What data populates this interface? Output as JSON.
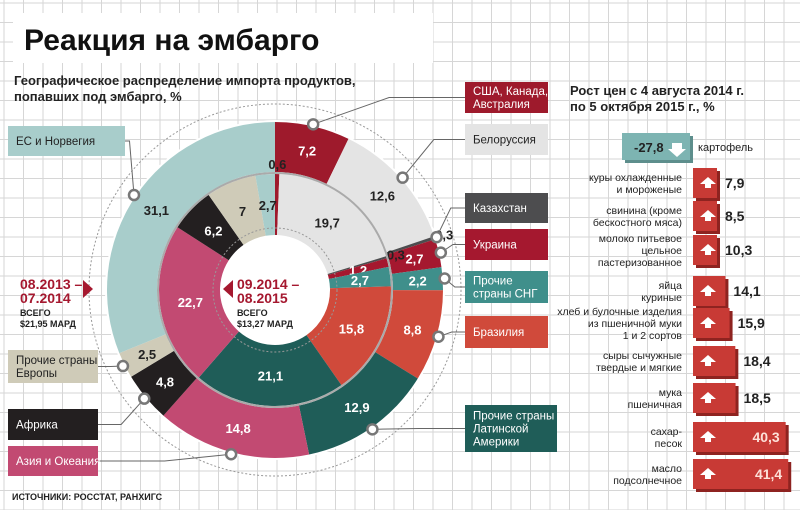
{
  "title": "Реакция на эмбарго",
  "source": "ИСТОЧНИКИ: РОССТАТ, РАНХИГС",
  "chart_data": [
    {
      "type": "pie",
      "subtype": "nested-donut",
      "title": "Географическое распределение импорта продуктов, попавших под эмбарго, %",
      "title_lines": [
        "Географическое распределение импорта продуктов,",
        "попавших под эмбарго, %"
      ],
      "categories": [
        "США, Канада, Австралия",
        "Белоруссия",
        "Казахстан",
        "Украина",
        "Прочие страны СНГ",
        "Бразилия",
        "Прочие страны Латинской Америки",
        "Азия и Океания",
        "Африка",
        "Прочие страны Европы",
        "ЕС и Норвегия"
      ],
      "colors": [
        "#9e1a2c",
        "#e4e4e4",
        "#4d4d4f",
        "#a5182f",
        "#3f8f8b",
        "#d04a3b",
        "#1f5d58",
        "#c24a72",
        "#231f20",
        "#cfcbb8",
        "#a8cdcb"
      ],
      "series": [
        {
          "name": "08.2013 – 07.2014",
          "ring": "outer",
          "total": "ВСЕГО $21,95 МАРД",
          "values": [
            7.2,
            12.6,
            0.3,
            2.7,
            2.2,
            8.8,
            12.9,
            14.8,
            4.8,
            2.5,
            31.1
          ]
        },
        {
          "name": "09.2014 – 08.2015",
          "ring": "inner",
          "total": "ВСЕГО $13,27 МАРД",
          "values": [
            0.6,
            19.7,
            0.3,
            1.2,
            2.7,
            15.8,
            21.1,
            22.7,
            6.2,
            7,
            2.7
          ]
        }
      ],
      "legend_placement": "around"
    },
    {
      "type": "bar",
      "orientation": "horizontal",
      "title_lines": [
        "Рост цен с 4 августа 2014 г.",
        "по 5 октября 2015 г., %"
      ],
      "negative": {
        "category": "картофель",
        "value": -27.8,
        "label": "-27,8",
        "color": "#7db4b2"
      },
      "categories": [
        [
          "куры охлажденные",
          "и мороженые"
        ],
        [
          "свинина (кроме",
          "бескостного мяса)"
        ],
        [
          "молоко питьевое",
          "цельное",
          "пастеризованное"
        ],
        [
          "яйца",
          "куриные"
        ],
        [
          "хлеб и булочные изделия",
          "из пшеничной муки",
          "1 и 2 сортов"
        ],
        [
          "сыры сычужные",
          "твердые и мягкие"
        ],
        [
          "мука",
          "пшеничная"
        ],
        [
          "сахар-",
          "песок"
        ],
        [
          "масло",
          "подсолнечное"
        ]
      ],
      "values": [
        7.9,
        8.5,
        10.3,
        14.1,
        15.9,
        18.4,
        18.5,
        40.3,
        41.4
      ],
      "labels": [
        "7,9",
        "8,5",
        "10,3",
        "14,1",
        "15,9",
        "18,4",
        "18,5",
        "40,3",
        "41,4"
      ],
      "color": "#c83a35",
      "icon": "arrow-up-icon"
    }
  ]
}
